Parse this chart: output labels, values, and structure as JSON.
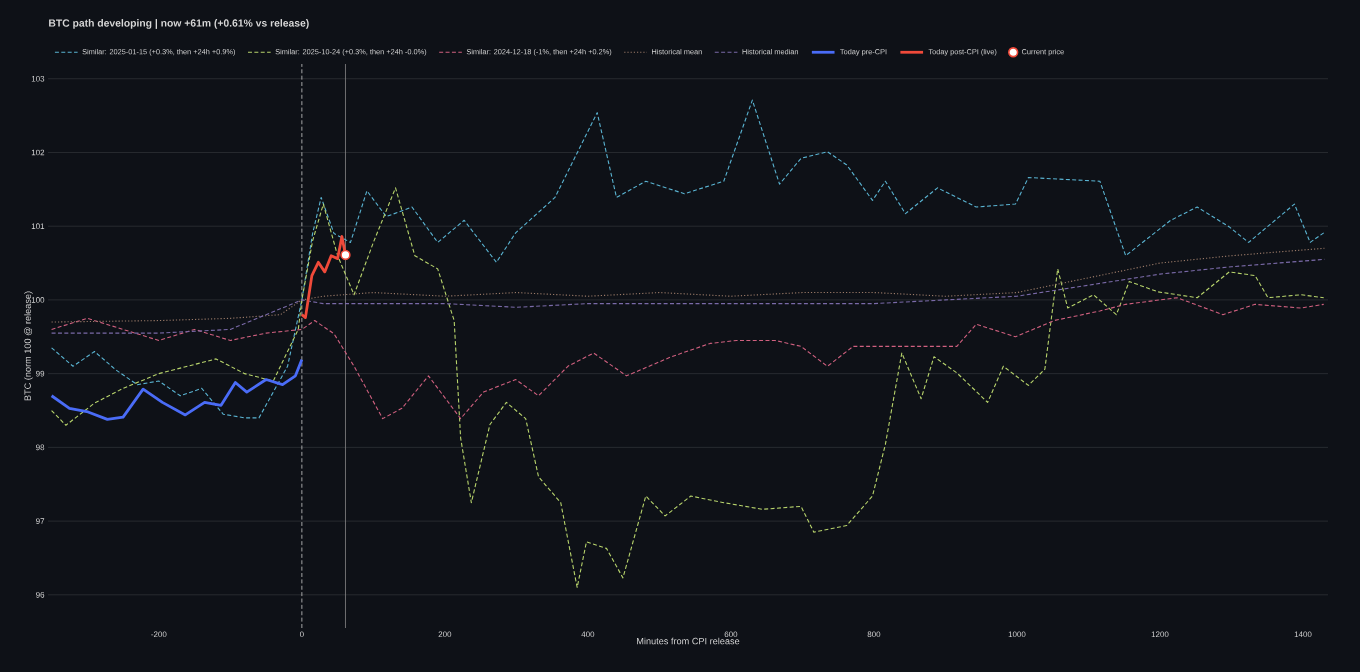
{
  "chart_data": {
    "type": "line",
    "title": "BTC path developing | now +61m (+0.61% vs release)",
    "xlabel": "Minutes from CPI release",
    "ylabel": "BTC (norm 100 @ release)",
    "xlim": [
      -355,
      1435
    ],
    "ylim": [
      95.55,
      103.2
    ],
    "xticks": [
      -200,
      0,
      200,
      400,
      600,
      800,
      1000,
      1200,
      1400
    ],
    "yticks": [
      96,
      97,
      98,
      99,
      100,
      101,
      102,
      103
    ],
    "grid": "y",
    "legend": "top",
    "marker": "none",
    "ref_lines": [
      {
        "axis": "x",
        "value": 0,
        "color": "#cccccc",
        "line_style": "dashed"
      },
      {
        "axis": "x",
        "value": 61,
        "color": "#888888",
        "line_style": "solid"
      }
    ],
    "series": [
      {
        "name": "Similar: 2025-01-15 (+0.3%, then +24h +0.9%)",
        "color": "#5ab4d2",
        "line_style": "dashed",
        "x": [
          -350,
          -320,
          -290,
          -260,
          -230,
          -200,
          -170,
          -140,
          -110,
          -80,
          -60,
          -40,
          -20,
          0,
          15,
          27,
          45,
          68,
          91,
          118,
          154,
          190,
          227,
          272,
          299,
          354,
          413,
          440,
          481,
          535,
          590,
          630,
          668,
          698,
          735,
          762,
          798,
          816,
          844,
          889,
          943,
          998,
          1016,
          1116,
          1152,
          1215,
          1252,
          1297,
          1324,
          1388,
          1410,
          1429
        ],
        "values": [
          99.35,
          99.1,
          99.3,
          99.05,
          98.85,
          98.9,
          98.7,
          98.8,
          98.45,
          98.4,
          98.4,
          98.75,
          99.1,
          100,
          100.9,
          101.39,
          100.9,
          100.78,
          101.48,
          101.13,
          101.26,
          100.78,
          101.08,
          100.51,
          100.91,
          101.39,
          102.54,
          101.39,
          101.61,
          101.44,
          101.61,
          102.71,
          101.57,
          101.92,
          102.01,
          101.83,
          101.35,
          101.61,
          101.17,
          101.52,
          101.26,
          101.3,
          101.66,
          101.61,
          100.6,
          101.08,
          101.26,
          100.99,
          100.78,
          101.3,
          100.78,
          100.91
        ]
      },
      {
        "name": "Similar: 2025-10-24 (+0.3%, then +24h -0.0%)",
        "color": "#b8d46c",
        "line_style": "dashed",
        "x": [
          -350,
          -330,
          -290,
          -250,
          -200,
          -160,
          -120,
          -80,
          -40,
          -5,
          0,
          15,
          30,
          50,
          73,
          100,
          131,
          158,
          190,
          213,
          222,
          237,
          263,
          286,
          313,
          331,
          362,
          385,
          398,
          426,
          449,
          481,
          508,
          544,
          590,
          644,
          698,
          716,
          762,
          798,
          816,
          839,
          866,
          884,
          916,
          959,
          981,
          1016,
          1039,
          1057,
          1071,
          1107,
          1139,
          1157,
          1197,
          1252,
          1297,
          1333,
          1351,
          1397,
          1429
        ],
        "values": [
          98.5,
          98.3,
          98.6,
          98.8,
          99.0,
          99.1,
          99.2,
          99.0,
          98.9,
          99.6,
          100,
          100.8,
          101.3,
          100.6,
          100.07,
          100.78,
          101.52,
          100.6,
          100.42,
          99.72,
          98.13,
          97.25,
          98.31,
          98.61,
          98.39,
          97.6,
          97.25,
          96.1,
          96.72,
          96.63,
          96.23,
          97.34,
          97.07,
          97.34,
          97.25,
          97.16,
          97.2,
          96.85,
          96.94,
          97.34,
          98.04,
          99.28,
          98.66,
          99.23,
          99.01,
          98.61,
          99.1,
          98.84,
          99.06,
          100.42,
          99.89,
          100.07,
          99.8,
          100.25,
          100.11,
          100.03,
          100.38,
          100.33,
          100.03,
          100.07,
          100.03
        ]
      },
      {
        "name": "Similar: 2024-12-18 (-1%, then +24h +0.2%)",
        "color": "#d0607f",
        "line_style": "dashed",
        "x": [
          -350,
          -300,
          -250,
          -200,
          -150,
          -100,
          -50,
          0,
          18,
          45,
          73,
          113,
          140,
          177,
          222,
          254,
          299,
          331,
          372,
          408,
          454,
          517,
          571,
          608,
          662,
          698,
          735,
          771,
          844,
          916,
          943,
          998,
          1052,
          1116,
          1152,
          1224,
          1288,
          1333,
          1397,
          1429
        ],
        "values": [
          99.6,
          99.75,
          99.6,
          99.45,
          99.6,
          99.45,
          99.55,
          99.6,
          99.72,
          99.54,
          99.1,
          98.39,
          98.53,
          98.97,
          98.39,
          98.75,
          98.92,
          98.7,
          99.1,
          99.28,
          98.97,
          99.23,
          99.41,
          99.45,
          99.45,
          99.37,
          99.1,
          99.37,
          99.37,
          99.37,
          99.67,
          99.5,
          99.72,
          99.85,
          99.94,
          100.03,
          99.8,
          99.94,
          99.89,
          99.94
        ]
      },
      {
        "name": "Historical mean",
        "color": "#9a7a68",
        "line_style": "dotted",
        "x": [
          -350,
          -200,
          -100,
          -30,
          0,
          30,
          100,
          200,
          300,
          400,
          500,
          600,
          700,
          800,
          900,
          1000,
          1100,
          1200,
          1300,
          1430
        ],
        "values": [
          99.7,
          99.72,
          99.75,
          99.8,
          100,
          100.05,
          100.1,
          100.05,
          100.1,
          100.05,
          100.1,
          100.05,
          100.1,
          100.1,
          100.05,
          100.1,
          100.3,
          100.5,
          100.6,
          100.7
        ]
      },
      {
        "name": "Historical median",
        "color": "#7a6aa8",
        "line_style": "dashed",
        "x": [
          -350,
          -200,
          -100,
          0,
          30,
          100,
          200,
          300,
          400,
          500,
          600,
          700,
          800,
          900,
          1000,
          1100,
          1200,
          1300,
          1430
        ],
        "values": [
          99.55,
          99.55,
          99.6,
          100,
          99.95,
          99.95,
          99.95,
          99.9,
          99.95,
          99.95,
          99.95,
          99.95,
          99.95,
          100.0,
          100.05,
          100.2,
          100.35,
          100.45,
          100.55
        ]
      },
      {
        "name": "Today pre-CPI",
        "color": "#4a6cf7",
        "line_style": "solid",
        "x": [
          -350,
          -325,
          -299,
          -272,
          -250,
          -222,
          -195,
          -163,
          -136,
          -113,
          -93,
          -77,
          -50,
          -27,
          -9,
          0
        ],
        "values": [
          98.7,
          98.53,
          98.48,
          98.38,
          98.41,
          98.79,
          98.61,
          98.44,
          98.61,
          98.57,
          98.88,
          98.75,
          98.92,
          98.85,
          98.97,
          99.19
        ]
      },
      {
        "name": "Today post-CPI (live)",
        "color": "#f04a3a",
        "line_style": "solid",
        "x": [
          0,
          5,
          14,
          23,
          32,
          41,
          50,
          56,
          61
        ],
        "values": [
          99.8,
          99.76,
          100.33,
          100.51,
          100.38,
          100.6,
          100.56,
          100.86,
          100.61
        ]
      },
      {
        "name": "Current price",
        "type": "scatter",
        "marker": "circle",
        "color": "#ffffff",
        "x": [
          61
        ],
        "values": [
          100.61
        ]
      }
    ]
  }
}
